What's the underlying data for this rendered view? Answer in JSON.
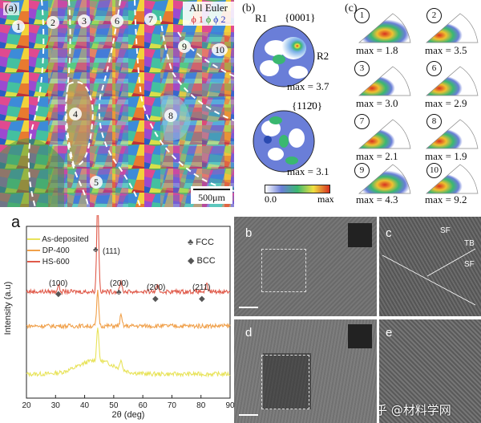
{
  "ebsd": {
    "panel_label": "(a)",
    "legend_title": "All Euler",
    "legend_phis": [
      "ϕ 1",
      "ϕ",
      "ϕ 2"
    ],
    "legend_colors": [
      "#d21f2a",
      "#1f8f2a",
      "#2438c8"
    ],
    "region_numbers": [
      "1",
      "2",
      "3",
      "4",
      "5",
      "6",
      "7",
      "8",
      "9",
      "10"
    ],
    "scale_bar": "500μm"
  },
  "pole_figures": {
    "panel_label": "(b)",
    "planes": [
      "{0001}",
      "{11͞2͞0}"
    ],
    "plane_labels": [
      "{0001}",
      "{112̄0}"
    ],
    "r1": "R1",
    "r2": "R2",
    "max_values": [
      "max = 3.7",
      "max = 3.1"
    ],
    "colorbar_min": "0.0",
    "colorbar_max": "max"
  },
  "inverse_pole": {
    "panel_label": "(c)",
    "items": [
      {
        "num": "1",
        "max": "max = 1.8"
      },
      {
        "num": "2",
        "max": "max = 3.5"
      },
      {
        "num": "3",
        "max": "max = 3.0"
      },
      {
        "num": "6",
        "max": "max = 2.9"
      },
      {
        "num": "7",
        "max": "max = 2.1"
      },
      {
        "num": "8",
        "max": "max = 1.9"
      },
      {
        "num": "9",
        "max": "max = 4.3"
      },
      {
        "num": "10",
        "max": "max = 9.2"
      }
    ]
  },
  "xrd": {
    "panel_label": "a",
    "ylabel": "Intensity (a.u)",
    "xlabel": "2θ (deg)",
    "series": [
      {
        "name": "As-deposited",
        "color": "#e8e35a"
      },
      {
        "name": "DP-400",
        "color": "#f0a04a"
      },
      {
        "name": "HS-600",
        "color": "#e05a4a"
      }
    ],
    "phase_legend": [
      "FCC",
      "BCC"
    ],
    "peak_labels": [
      "(100)",
      "(111)",
      "(200)",
      "(200)",
      "(211)"
    ],
    "x_ticks": [
      "20",
      "30",
      "40",
      "50",
      "60",
      "70",
      "80",
      "90"
    ]
  },
  "chart_data": {
    "type": "line",
    "xlabel": "2θ (deg)",
    "ylabel": "Intensity (a.u)",
    "xlim": [
      20,
      90
    ],
    "x_ticks": [
      20,
      30,
      40,
      50,
      60,
      70,
      80,
      90
    ],
    "peaks": [
      {
        "label": "(100)",
        "x": 31.0,
        "phase": "BCC"
      },
      {
        "label": "(111)",
        "x": 44.5,
        "phase": "FCC"
      },
      {
        "label": "(200)",
        "x": 52.5,
        "phase": "FCC"
      },
      {
        "label": "(200)",
        "x": 65.0,
        "phase": "BCC"
      },
      {
        "label": "(211)",
        "x": 82.0,
        "phase": "BCC"
      }
    ],
    "series": [
      {
        "name": "As-deposited",
        "baseline": 0.14,
        "peaks": [
          [
            44.5,
            0.2
          ],
          [
            52.5,
            0.06
          ]
        ]
      },
      {
        "name": "DP-400",
        "baseline": 0.42,
        "peaks": [
          [
            44.5,
            0.2
          ],
          [
            52.5,
            0.06
          ]
        ]
      },
      {
        "name": "HS-600",
        "baseline": 0.62,
        "peaks": [
          [
            31.0,
            0.04
          ],
          [
            44.5,
            0.55
          ],
          [
            52.5,
            0.06
          ],
          [
            65.0,
            0.03
          ],
          [
            82.0,
            0.04
          ]
        ]
      }
    ]
  },
  "tem": {
    "labels": [
      "b",
      "c",
      "d",
      "e"
    ],
    "c_annotations": [
      "SF",
      "TB",
      "SF"
    ],
    "watermark": "知乎 @材料学网"
  }
}
